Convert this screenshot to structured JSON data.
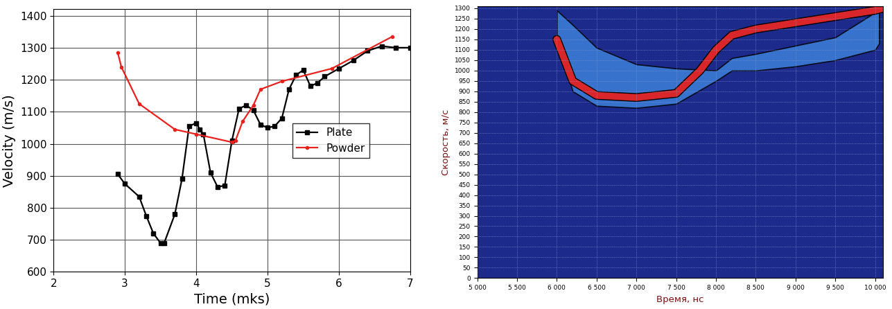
{
  "chart_data": [
    {
      "type": "line",
      "x_label": "Time (mks)",
      "y_label": "Velocity (m/s)",
      "xlim": [
        2,
        7
      ],
      "xticks": [
        2,
        3,
        4,
        5,
        6,
        7
      ],
      "ylim": [
        600,
        1420
      ],
      "yticks": [
        600,
        700,
        800,
        900,
        1000,
        1100,
        1200,
        1300,
        1400
      ],
      "grid": true,
      "legend": "center right",
      "series": [
        {
          "name": "Plate",
          "color": "#000000",
          "marker": "square",
          "line_style": "solid",
          "x": [
            2.9,
            3.0,
            3.2,
            3.3,
            3.4,
            3.5,
            3.55,
            3.7,
            3.8,
            3.9,
            4.0,
            4.05,
            4.1,
            4.2,
            4.3,
            4.4,
            4.5,
            4.6,
            4.7,
            4.8,
            4.9,
            5.0,
            5.1,
            5.2,
            5.3,
            5.4,
            5.5,
            5.6,
            5.7,
            5.8,
            6.0,
            6.2,
            6.4,
            6.6,
            6.8,
            7.0
          ],
          "values": [
            905,
            875,
            835,
            775,
            720,
            690,
            690,
            780,
            890,
            1055,
            1065,
            1045,
            1030,
            910,
            865,
            870,
            1010,
            1110,
            1120,
            1105,
            1060,
            1050,
            1055,
            1080,
            1170,
            1215,
            1230,
            1180,
            1190,
            1210,
            1235,
            1260,
            1290,
            1305,
            1300,
            1300
          ]
        },
        {
          "name": "Powder",
          "color": "#e8211d",
          "marker": "circle",
          "line_style": "solid",
          "x": [
            2.9,
            2.95,
            3.2,
            3.7,
            4.0,
            4.5,
            4.55,
            4.65,
            4.8,
            4.9,
            5.2,
            5.9,
            6.75
          ],
          "values": [
            1285,
            1240,
            1125,
            1045,
            1030,
            1005,
            1010,
            1070,
            1120,
            1170,
            1195,
            1235,
            1335
          ]
        }
      ]
    },
    {
      "type": "spectrogram",
      "x_label": "Время, нс",
      "y_label": "Скорость, м/с",
      "xlim": [
        5000,
        10100
      ],
      "xticks": [
        {
          "value": 5000,
          "label": "5 000"
        },
        {
          "value": 5500,
          "label": "5 500"
        },
        {
          "value": 6000,
          "label": "6 000"
        },
        {
          "value": 6500,
          "label": "6 500"
        },
        {
          "value": 7000,
          "label": "7 000"
        },
        {
          "value": 7500,
          "label": "7 500"
        },
        {
          "value": 8000,
          "label": "8 000"
        },
        {
          "value": 8500,
          "label": "8 500"
        },
        {
          "value": 9000,
          "label": "9 000"
        },
        {
          "value": 9500,
          "label": "9 500"
        },
        {
          "value": 10000,
          "label": "10 000"
        }
      ],
      "ylim": [
        0,
        1310
      ],
      "yticks": [
        0,
        50,
        100,
        150,
        200,
        250,
        300,
        350,
        400,
        450,
        500,
        550,
        600,
        650,
        700,
        750,
        800,
        850,
        900,
        950,
        1000,
        1050,
        1100,
        1150,
        1200,
        1250,
        1300
      ],
      "grid": true,
      "series": [
        {
          "type": "band",
          "color": "#3d7fd9",
          "x": [
            6000,
            6200,
            6500,
            7000,
            7500,
            8000,
            8200,
            8500,
            9000,
            9500,
            10000,
            10050
          ],
          "upper": [
            1290,
            1220,
            1110,
            1030,
            1010,
            1000,
            1060,
            1080,
            1120,
            1160,
            1280,
            1300
          ],
          "lower": [
            1150,
            900,
            830,
            820,
            840,
            950,
            1000,
            1000,
            1020,
            1050,
            1100,
            1130
          ]
        },
        {
          "type": "line",
          "color": "#d9262a",
          "line_style": "solid",
          "x": [
            6000,
            6200,
            6500,
            7000,
            7500,
            7800,
            8000,
            8200,
            8500,
            9000,
            9500,
            10000,
            10100
          ],
          "values": [
            1150,
            950,
            880,
            870,
            890,
            1000,
            1100,
            1170,
            1200,
            1230,
            1260,
            1290,
            1300
          ]
        }
      ]
    }
  ]
}
